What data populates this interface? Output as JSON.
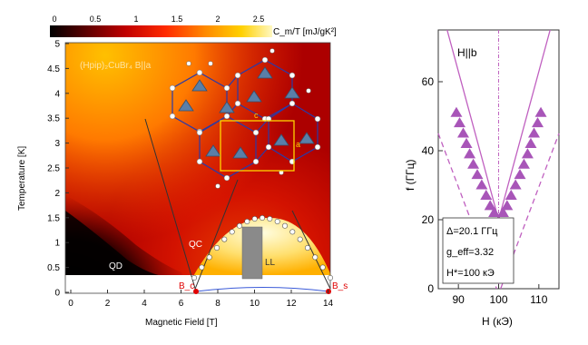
{
  "left_panel": {
    "colorbar": {
      "ticks": [
        "0",
        "0.5",
        "1",
        "1.5",
        "2",
        "2.5"
      ],
      "label": "C_m/T [mJ/gK²]",
      "colors": [
        "#000000",
        "#5a0000",
        "#c00000",
        "#ff2a00",
        "#ff8a00",
        "#ffd000",
        "#fff8c0"
      ]
    },
    "title": "(Hpip)₂CuBr₄ B||a",
    "lattice_labels": {
      "c": "c",
      "a": "a"
    },
    "phase_labels": {
      "qd": "QD",
      "qc": "QC",
      "ll": "LL"
    },
    "critical_labels": {
      "bc": "B_c",
      "bs": "B_s"
    },
    "xlabel": "Magnetic Field [T]",
    "ylabel": "Temperature [K]",
    "xticks": [
      "0",
      "2",
      "4",
      "6",
      "8",
      "10",
      "12",
      "14"
    ],
    "yticks": [
      "0",
      "0.5",
      "1",
      "1.5",
      "2",
      "2.5",
      "3",
      "3.5",
      "4",
      "4.5",
      "5"
    ]
  },
  "chart_data": {
    "type": "scatter",
    "xlabel": "H (кЭ)",
    "ylabel": "f (ГГц)",
    "xlim": [
      85,
      115
    ],
    "ylim": [
      0,
      75
    ],
    "xticks": [
      90,
      100,
      110
    ],
    "yticks": [
      0,
      20,
      40,
      60
    ],
    "legend_title": "H||b",
    "annotation": [
      "Δ=20.1 ГГц",
      "g_eff=3.32",
      "H*=100 кЭ"
    ],
    "series": [
      {
        "marker": "triangle",
        "color": "#a855b8",
        "x": [
          89.5,
          90.3,
          91.2,
          92.0,
          92.8,
          93.7,
          94.7,
          95.8,
          96.9,
          97.9,
          98.9,
          101.1,
          102.1,
          103.1,
          104.2,
          105.3,
          106.3,
          107.2,
          108.0,
          108.8,
          109.7,
          110.5
        ],
        "y": [
          51,
          48,
          45,
          42,
          39,
          36,
          33,
          30,
          27,
          24,
          22,
          22,
          24,
          27,
          30,
          33,
          36,
          39,
          42,
          45,
          48,
          51
        ]
      }
    ]
  }
}
